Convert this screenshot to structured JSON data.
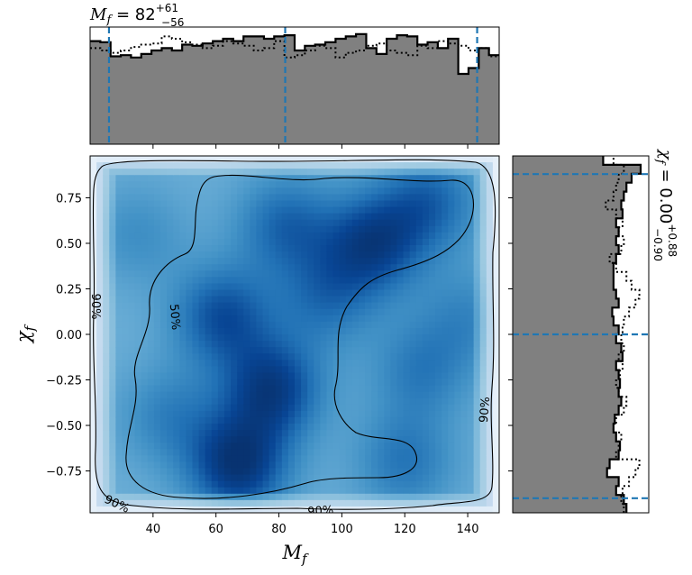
{
  "chart_data": [
    {
      "panel": "joint",
      "type": "heatmap",
      "xlabel": "M_f",
      "ylabel": "χ_f",
      "xlim": [
        20,
        150
      ],
      "ylim": [
        -0.98,
        0.98
      ],
      "xticks": [
        "40",
        "60",
        "80",
        "100",
        "120",
        "140"
      ],
      "yticks": [
        "−0.75",
        "−0.50",
        "−0.25",
        "0.00",
        "0.25",
        "0.50",
        "0.75"
      ],
      "colormap": "Blues",
      "density_peaks": [
        {
          "x": 67,
          "y": -0.72,
          "weight": 1.0
        },
        {
          "x": 78,
          "y": -0.3,
          "weight": 0.9
        },
        {
          "x": 62,
          "y": 0.1,
          "weight": 0.75
        },
        {
          "x": 110,
          "y": 0.5,
          "weight": 0.85
        },
        {
          "x": 128,
          "y": 0.73,
          "weight": 0.6
        },
        {
          "x": 82,
          "y": 0.6,
          "weight": 0.6
        },
        {
          "x": 95,
          "y": 0.2,
          "weight": 0.5
        },
        {
          "x": 125,
          "y": -0.2,
          "weight": 0.45
        },
        {
          "x": 120,
          "y": -0.7,
          "weight": 0.5
        },
        {
          "x": 45,
          "y": -0.45,
          "weight": 0.4
        },
        {
          "x": 140,
          "y": 0.1,
          "weight": 0.35
        },
        {
          "x": 35,
          "y": 0.55,
          "weight": 0.3
        }
      ],
      "contours": [
        {
          "level": "50%",
          "label": "50%"
        },
        {
          "level": "90%",
          "label": "90%"
        }
      ]
    },
    {
      "panel": "marginal-x",
      "type": "histogram",
      "title": "M_f = 82",
      "title_sup": "+61",
      "title_sub": "−56",
      "xlim": [
        20,
        150
      ],
      "median": 82,
      "interval": [
        26,
        143
      ],
      "bin_edges": [
        20,
        23.25,
        26.5,
        29.75,
        33,
        36.25,
        39.5,
        42.75,
        46,
        49.25,
        52.5,
        55.75,
        59,
        62.25,
        65.5,
        68.75,
        72,
        75.25,
        78.5,
        81.75,
        85,
        88.25,
        91.5,
        94.75,
        98,
        101.25,
        104.5,
        107.75,
        111,
        114.25,
        117.5,
        120.75,
        124,
        127.25,
        130.5,
        133.75,
        137,
        140.25,
        143.5,
        146.75,
        150
      ],
      "series": [
        {
          "name": "",
          "style": "filled-solid",
          "values": [
            0.88,
            0.87,
            0.75,
            0.76,
            0.74,
            0.77,
            0.8,
            0.82,
            0.8,
            0.85,
            0.84,
            0.86,
            0.88,
            0.9,
            0.88,
            0.92,
            0.92,
            0.9,
            0.92,
            0.93,
            0.8,
            0.84,
            0.85,
            0.87,
            0.9,
            0.92,
            0.94,
            0.82,
            0.77,
            0.9,
            0.93,
            0.92,
            0.85,
            0.87,
            0.82,
            0.9,
            0.6,
            0.65,
            0.82,
            0.76
          ]
        },
        {
          "name": "",
          "style": "dotted",
          "values": [
            0.82,
            0.8,
            0.78,
            0.8,
            0.83,
            0.85,
            0.86,
            0.92,
            0.9,
            0.87,
            0.85,
            0.82,
            0.84,
            0.88,
            0.86,
            0.84,
            0.8,
            0.82,
            0.88,
            0.74,
            0.76,
            0.8,
            0.84,
            0.82,
            0.74,
            0.78,
            0.8,
            0.84,
            0.86,
            0.8,
            0.78,
            0.76,
            0.84,
            0.82,
            0.88,
            0.86,
            0.84,
            0.8,
            0.82,
            0.75
          ]
        }
      ]
    },
    {
      "panel": "marginal-y",
      "type": "histogram",
      "title": "χ_f = 0.00",
      "title_sup": "+0.88",
      "title_sub": "−0.90",
      "ylim": [
        -0.98,
        0.98
      ],
      "median": 0.0,
      "interval": [
        -0.9,
        0.88
      ],
      "bin_edges": [
        -0.98,
        -0.931,
        -0.882,
        -0.833,
        -0.784,
        -0.735,
        -0.686,
        -0.637,
        -0.588,
        -0.539,
        -0.49,
        -0.441,
        -0.392,
        -0.343,
        -0.294,
        -0.245,
        -0.196,
        -0.147,
        -0.098,
        -0.049,
        0.0,
        0.049,
        0.098,
        0.147,
        0.196,
        0.245,
        0.294,
        0.343,
        0.392,
        0.441,
        0.49,
        0.539,
        0.588,
        0.637,
        0.686,
        0.735,
        0.784,
        0.833,
        0.882,
        0.931,
        0.98
      ],
      "series": [
        {
          "name": "",
          "style": "filled-solid",
          "values": [
            0.88,
            0.86,
            0.8,
            0.82,
            0.73,
            0.75,
            0.82,
            0.83,
            0.8,
            0.78,
            0.79,
            0.82,
            0.84,
            0.82,
            0.83,
            0.82,
            0.8,
            0.85,
            0.84,
            0.8,
            0.82,
            0.78,
            0.77,
            0.82,
            0.8,
            0.78,
            0.78,
            0.78,
            0.8,
            0.82,
            0.8,
            0.82,
            0.8,
            0.85,
            0.84,
            0.86,
            0.88,
            0.92,
            0.99,
            0.7
          ]
        },
        {
          "name": "",
          "style": "dotted",
          "values": [
            0.86,
            0.84,
            0.85,
            0.9,
            0.95,
            0.98,
            0.8,
            0.82,
            0.84,
            0.78,
            0.8,
            0.86,
            0.88,
            0.82,
            0.8,
            0.83,
            0.85,
            0.82,
            0.86,
            0.84,
            0.85,
            0.86,
            0.9,
            0.95,
            0.98,
            0.92,
            0.88,
            0.8,
            0.75,
            0.84,
            0.86,
            0.82,
            0.85,
            0.8,
            0.72,
            0.78,
            0.8,
            0.82,
            0.86,
            0.78
          ]
        }
      ]
    }
  ],
  "colors": {
    "fill": "#808080",
    "edge": "#000000",
    "interval_line": "#1f77b4",
    "contour": "#000000"
  }
}
